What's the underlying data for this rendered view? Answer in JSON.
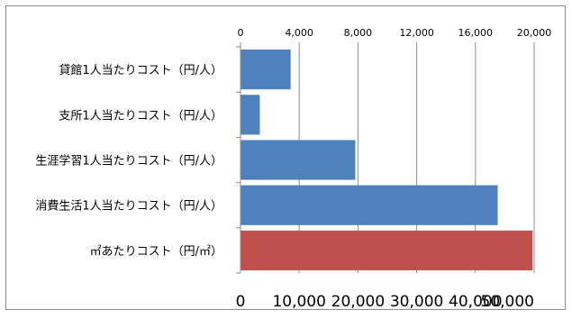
{
  "chart_data": {
    "type": "bar",
    "orientation": "horizontal",
    "categories": [
      "貸館1人当たりコスト（円/人）",
      "支所1人当たりコスト（円/人）",
      "生涯学習1人当たりコスト（円/人）",
      "消費生活1人当たりコスト（円/人）",
      "㎡あたりコスト（円/㎡）"
    ],
    "series": [
      {
        "axis": "top",
        "color": "#4F81BD",
        "values": [
          3400,
          1300,
          7800,
          17500,
          null
        ]
      },
      {
        "axis": "bottom",
        "color": "#C0504D",
        "values": [
          null,
          null,
          null,
          null,
          49700
        ]
      }
    ],
    "top_axis": {
      "range": [
        0,
        20000
      ],
      "tick_labels": [
        "0",
        "4,000",
        "8,000",
        "12,000",
        "16,000",
        "20,000"
      ]
    },
    "bottom_axis": {
      "range": [
        0,
        50000
      ],
      "tick_labels": [
        "0",
        "10,000",
        "20,000",
        "30,000",
        "40,000",
        "50,000"
      ]
    },
    "grid": true,
    "legend": "none"
  }
}
